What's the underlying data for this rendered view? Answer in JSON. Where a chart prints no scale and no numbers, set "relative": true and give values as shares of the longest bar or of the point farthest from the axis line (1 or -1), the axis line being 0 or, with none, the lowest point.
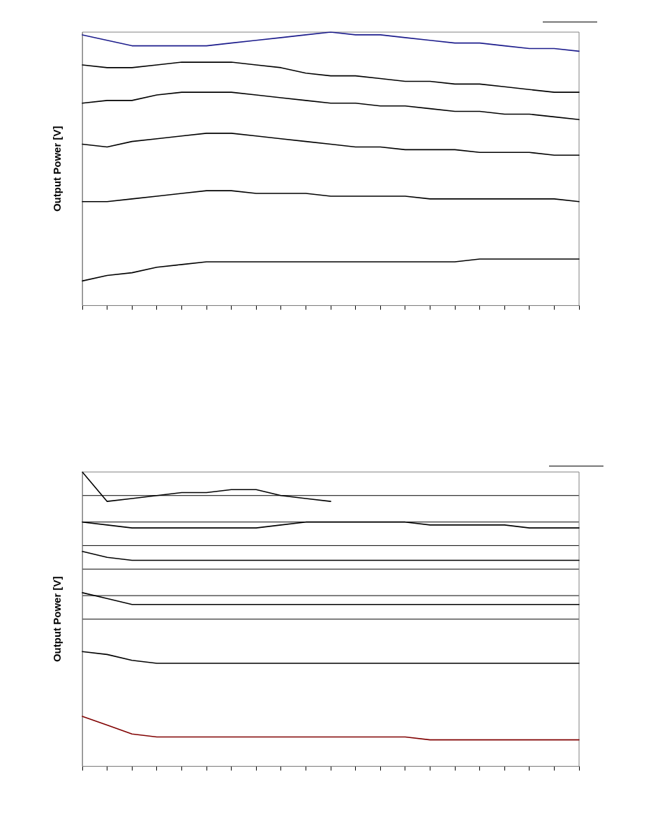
{
  "chart_data": [
    {
      "type": "line",
      "ylabel": "Output Power [V]",
      "relative": true,
      "legend": false,
      "grid": false,
      "marker": "none",
      "line_style": "solid",
      "categories": [
        null,
        null,
        null,
        null,
        null,
        null,
        null,
        null,
        null,
        null,
        null,
        null,
        null,
        null,
        null,
        null,
        null,
        null,
        null,
        null,
        null
      ],
      "series": [
        {
          "color": "#1c1c8c",
          "values": [
            0.99,
            0.97,
            0.95,
            0.95,
            0.95,
            0.95,
            0.96,
            0.97,
            0.98,
            0.99,
            1,
            0.99,
            0.99,
            0.98,
            0.97,
            0.96,
            0.96,
            0.95,
            0.94,
            0.94,
            0.93
          ]
        },
        {
          "color": "#000000",
          "values": [
            0.88,
            0.87,
            0.87,
            0.88,
            0.89,
            0.89,
            0.89,
            0.88,
            0.87,
            0.85,
            0.84,
            0.84,
            0.83,
            0.82,
            0.82,
            0.81,
            0.81,
            0.8,
            0.79,
            0.78,
            0.78
          ]
        },
        {
          "color": "#000000",
          "values": [
            0.74,
            0.75,
            0.75,
            0.77,
            0.78,
            0.78,
            0.78,
            0.77,
            0.76,
            0.75,
            0.74,
            0.74,
            0.73,
            0.73,
            0.72,
            0.71,
            0.71,
            0.7,
            0.7,
            0.69,
            0.68
          ]
        },
        {
          "color": "#000000",
          "values": [
            0.59,
            0.58,
            0.6,
            0.61,
            0.62,
            0.63,
            0.63,
            0.62,
            0.61,
            0.6,
            0.59,
            0.58,
            0.58,
            0.57,
            0.57,
            0.57,
            0.56,
            0.56,
            0.56,
            0.55,
            0.55
          ]
        },
        {
          "color": "#000000",
          "values": [
            0.38,
            0.38,
            0.39,
            0.4,
            0.41,
            0.42,
            0.42,
            0.41,
            0.41,
            0.41,
            0.4,
            0.4,
            0.4,
            0.4,
            0.39,
            0.39,
            0.39,
            0.39,
            0.39,
            0.39,
            0.38
          ]
        },
        {
          "color": "#000000",
          "values": [
            0.09,
            0.11,
            0.12,
            0.14,
            0.15,
            0.16,
            0.16,
            0.16,
            0.16,
            0.16,
            0.16,
            0.16,
            0.16,
            0.16,
            0.16,
            0.16,
            0.17,
            0.17,
            0.17,
            0.17,
            0.17
          ]
        }
      ]
    },
    {
      "type": "line",
      "ylabel": "Output Power [V]",
      "relative": true,
      "legend": false,
      "grid": false,
      "marker": "none",
      "line_style": "solid",
      "categories": [
        null,
        null,
        null,
        null,
        null,
        null,
        null,
        null,
        null,
        null,
        null,
        null,
        null,
        null,
        null,
        null,
        null,
        null,
        null,
        null,
        null
      ],
      "ref_lines": [
        {
          "axis": "y",
          "value": 0.92
        },
        {
          "axis": "y",
          "value": 0.83
        },
        {
          "axis": "y",
          "value": 0.75
        },
        {
          "axis": "y",
          "value": 0.67
        },
        {
          "axis": "y",
          "value": 0.58
        },
        {
          "axis": "y",
          "value": 0.5
        }
      ],
      "series": [
        {
          "color": "#000000",
          "values": [
            1,
            0.9,
            0.91,
            0.92,
            0.93,
            0.93,
            0.94,
            0.94,
            0.92,
            0.91,
            0.9,
            null,
            null,
            null,
            null,
            null,
            null,
            null,
            null,
            null,
            null
          ]
        },
        {
          "color": "#000000",
          "values": [
            0.83,
            0.82,
            0.81,
            0.81,
            0.81,
            0.81,
            0.81,
            0.81,
            0.82,
            0.83,
            0.83,
            0.83,
            0.83,
            0.83,
            0.82,
            0.82,
            0.82,
            0.82,
            0.81,
            0.81,
            0.81
          ]
        },
        {
          "color": "#000000",
          "values": [
            0.73,
            0.71,
            0.7,
            0.7,
            0.7,
            0.7,
            0.7,
            0.7,
            0.7,
            0.7,
            0.7,
            0.7,
            0.7,
            0.7,
            0.7,
            0.7,
            0.7,
            0.7,
            0.7,
            0.7,
            0.7
          ]
        },
        {
          "color": "#000000",
          "values": [
            0.59,
            0.57,
            0.55,
            0.55,
            0.55,
            0.55,
            0.55,
            0.55,
            0.55,
            0.55,
            0.55,
            0.55,
            0.55,
            0.55,
            0.55,
            0.55,
            0.55,
            0.55,
            0.55,
            0.55,
            0.55
          ]
        },
        {
          "color": "#000000",
          "values": [
            0.39,
            0.38,
            0.36,
            0.35,
            0.35,
            0.35,
            0.35,
            0.35,
            0.35,
            0.35,
            0.35,
            0.35,
            0.35,
            0.35,
            0.35,
            0.35,
            0.35,
            0.35,
            0.35,
            0.35,
            0.35
          ]
        },
        {
          "color": "#800000",
          "values": [
            0.17,
            0.14,
            0.11,
            0.1,
            0.1,
            0.1,
            0.1,
            0.1,
            0.1,
            0.1,
            0.1,
            0.1,
            0.1,
            0.1,
            0.09,
            0.09,
            0.09,
            0.09,
            0.09,
            0.09,
            0.09
          ]
        }
      ]
    }
  ]
}
